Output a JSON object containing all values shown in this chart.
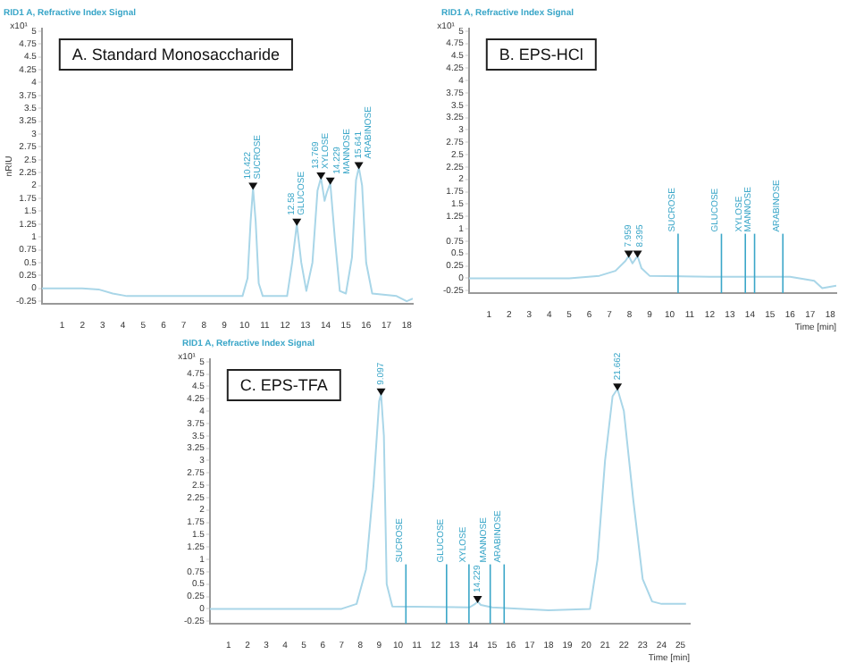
{
  "chart_data": [
    {
      "type": "line",
      "title": "RID1 A, Refractive Index Signal",
      "subtitle": "A. Standard Monosaccharide",
      "ylabel": "nRIU",
      "grid": false,
      "legend": false,
      "marker": "none",
      "xlim": [
        0,
        18.3
      ],
      "xticks": [
        1,
        2,
        3,
        4,
        5,
        6,
        7,
        8,
        9,
        10,
        11,
        12,
        13,
        14,
        15,
        16,
        17,
        18
      ],
      "ylim": [
        -0.3,
        5.05
      ],
      "yticks": [
        -0.25,
        0,
        0.25,
        0.5,
        0.75,
        1,
        1.25,
        1.5,
        1.75,
        2,
        2.25,
        2.5,
        2.75,
        3,
        3.25,
        3.5,
        3.75,
        4,
        4.25,
        4.5,
        4.75,
        5
      ],
      "series": [
        {
          "color": "#a9d6e8",
          "x": [
            0,
            2,
            2.8,
            3.5,
            4.2,
            9.9,
            10.15,
            10.3,
            10.42,
            10.55,
            10.7,
            10.9,
            12.1,
            12.35,
            12.58,
            12.8,
            13.05,
            13.35,
            13.6,
            13.77,
            13.95,
            14.05,
            14.23,
            14.45,
            14.7,
            15,
            15.3,
            15.5,
            15.64,
            15.8,
            16,
            16.3,
            17.5,
            18,
            18.3
          ],
          "values": [
            0,
            0,
            -0.02,
            -0.1,
            -0.15,
            -0.15,
            0.2,
            1.3,
            1.95,
            1.3,
            0.1,
            -0.15,
            -0.15,
            0.5,
            1.25,
            0.5,
            -0.05,
            0.5,
            1.9,
            2.15,
            1.7,
            1.85,
            2.05,
            1,
            -0.05,
            -0.1,
            0.6,
            2.1,
            2.35,
            2,
            0.5,
            -0.1,
            -0.15,
            -0.25,
            -0.2
          ]
        }
      ],
      "annotations": [
        "x10¹",
        {
          "text": "10.422 SUCROSE",
          "x": 10.42,
          "y": 1.95
        },
        {
          "text": "12.58 GLUCOSE",
          "x": 12.58,
          "y": 1.25
        },
        {
          "text": "13.769 XYLOSE",
          "x": 13.77,
          "y": 2.15
        },
        {
          "text": "14.229 MANNOSE",
          "x": 14.23,
          "y": 2.05
        },
        {
          "text": "15.641 ARABINOSE",
          "x": 15.64,
          "y": 2.35
        }
      ]
    },
    {
      "type": "line",
      "title": "RID1 A, Refractive Index Signal",
      "subtitle": "B. EPS-HCl",
      "xlabel": "Time [min]",
      "grid": false,
      "legend": false,
      "marker": "none",
      "xlim": [
        0,
        18.3
      ],
      "xticks": [
        1,
        2,
        3,
        4,
        5,
        6,
        7,
        8,
        9,
        10,
        11,
        12,
        13,
        14,
        15,
        16,
        17,
        18
      ],
      "ylim": [
        -0.3,
        5.05
      ],
      "yticks": [
        -0.25,
        0,
        0.25,
        0.5,
        0.75,
        1,
        1.25,
        1.5,
        1.75,
        2,
        2.25,
        2.5,
        2.75,
        3,
        3.25,
        3.5,
        3.75,
        4,
        4.25,
        4.5,
        4.75,
        5
      ],
      "series": [
        {
          "color": "#a9d6e8",
          "x": [
            0,
            5,
            6.5,
            7.3,
            7.8,
            7.96,
            8.15,
            8.4,
            8.6,
            9,
            12,
            16,
            17.2,
            17.6,
            18.3
          ],
          "values": [
            0,
            0,
            0.05,
            0.15,
            0.35,
            0.45,
            0.3,
            0.45,
            0.2,
            0.05,
            0.03,
            0.03,
            -0.05,
            -0.2,
            -0.15
          ]
        }
      ],
      "ref_lines": [
        {
          "axis": "x",
          "value": 10.42,
          "label": "SUCROSE",
          "color": "#3aa6c8"
        },
        {
          "axis": "x",
          "value": 12.58,
          "label": "GLUCOSE",
          "color": "#3aa6c8"
        },
        {
          "axis": "x",
          "value": 13.77,
          "label": "XYLOSE",
          "color": "#3aa6c8"
        },
        {
          "axis": "x",
          "value": 14.23,
          "label": "MANNOSE",
          "color": "#3aa6c8"
        },
        {
          "axis": "x",
          "value": 15.64,
          "label": "ARABINOSE",
          "color": "#3aa6c8"
        }
      ],
      "annotations": [
        "x10¹",
        {
          "text": "7.959",
          "x": 7.96,
          "y": 0.45
        },
        {
          "text": "8.395",
          "x": 8.4,
          "y": 0.45
        }
      ]
    },
    {
      "type": "line",
      "title": "RID1 A, Refractive Index Signal",
      "subtitle": "C. EPS-TFA",
      "xlabel": "Time [min]",
      "grid": false,
      "legend": false,
      "marker": "none",
      "xlim": [
        0,
        25.5
      ],
      "xticks": [
        1,
        2,
        3,
        4,
        5,
        6,
        7,
        8,
        9,
        10,
        11,
        12,
        13,
        14,
        15,
        16,
        17,
        18,
        19,
        20,
        21,
        22,
        23,
        24,
        25
      ],
      "ylim": [
        -0.3,
        5.05
      ],
      "yticks": [
        -0.25,
        0,
        0.25,
        0.5,
        0.75,
        1,
        1.25,
        1.5,
        1.75,
        2,
        2.25,
        2.5,
        2.75,
        3,
        3.25,
        3.5,
        3.75,
        4,
        4.25,
        4.5,
        4.75,
        5
      ],
      "series": [
        {
          "color": "#a9d6e8",
          "x": [
            0,
            7,
            7.8,
            8.3,
            8.7,
            9,
            9.1,
            9.25,
            9.4,
            9.7,
            13.8,
            14.1,
            14.23,
            14.4,
            15,
            18,
            20.2,
            20.6,
            21,
            21.4,
            21.66,
            22,
            22.5,
            23,
            23.5,
            24,
            25.3
          ],
          "values": [
            0,
            0,
            0.1,
            0.8,
            2.5,
            4.2,
            4.35,
            3.5,
            0.5,
            0.05,
            0.03,
            0.1,
            0.15,
            0.08,
            0.03,
            -0.03,
            0,
            1,
            3,
            4.3,
            4.45,
            4,
            2.2,
            0.6,
            0.15,
            0.1,
            0.1
          ]
        }
      ],
      "ref_lines": [
        {
          "axis": "x",
          "value": 10.42,
          "label": "SUCROSE",
          "color": "#3aa6c8"
        },
        {
          "axis": "x",
          "value": 12.58,
          "label": "GLUCOSE",
          "color": "#3aa6c8"
        },
        {
          "axis": "x",
          "value": 13.77,
          "label": "XYLOSE",
          "color": "#3aa6c8"
        },
        {
          "axis": "x",
          "value": 14.9,
          "label": "MANNOSE",
          "color": "#3aa6c8"
        },
        {
          "axis": "x",
          "value": 15.64,
          "label": "ARABINOSE",
          "color": "#3aa6c8"
        }
      ],
      "annotations": [
        "x10¹",
        {
          "text": "9.097",
          "x": 9.1,
          "y": 4.35
        },
        {
          "text": "14.229",
          "x": 14.23,
          "y": 0.15
        },
        {
          "text": "21.662",
          "x": 21.66,
          "y": 4.45
        }
      ]
    }
  ]
}
